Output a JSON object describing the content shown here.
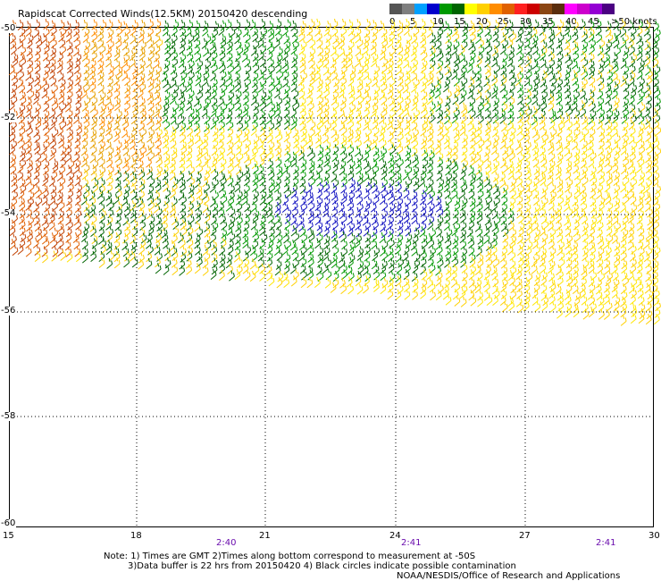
{
  "title": "Rapidscat Corrected Winds(12.5KM) 20150420 descending",
  "legend": {
    "labels": [
      "0",
      "5",
      "10",
      "15",
      "20",
      "25",
      "30",
      "35",
      "40",
      "45",
      ">50 knots"
    ],
    "colors": [
      "#555555",
      "#7f7f7f",
      "#00a0ff",
      "#0000cc",
      "#009900",
      "#006400",
      "#ffff00",
      "#ffd000",
      "#ff8c00",
      "#e06000",
      "#ff2020",
      "#cc0000",
      "#8b4513",
      "#5a2d0c",
      "#ff00ff",
      "#cc00cc",
      "#9400d3",
      "#4b0082"
    ]
  },
  "axes": {
    "lat_labels": [
      "-50",
      "-52",
      "-54",
      "-56",
      "-58",
      "-60"
    ],
    "lon_labels": [
      "15",
      "18",
      "21",
      "24",
      "27",
      "30"
    ],
    "time_labels": [
      "2:40",
      "2:41",
      "2:41"
    ]
  },
  "notes": {
    "line1": "Note: 1) Times are GMT 2)Times along bottom correspond to measurement at -50S",
    "line2": "3)Data buffer is 22 hrs from 20150420 4) Black circles indicate possible contamination",
    "credit": "NOAA/NESDIS/Office of Research and Applications"
  }
}
